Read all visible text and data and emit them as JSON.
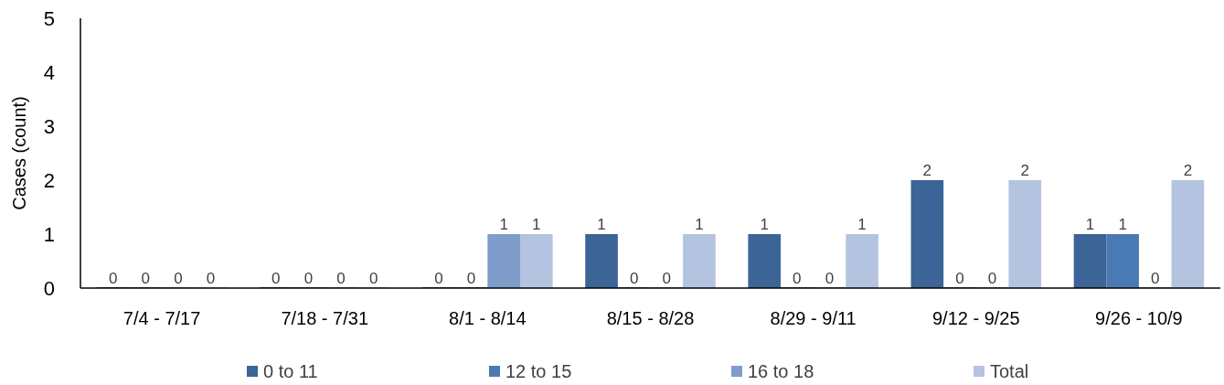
{
  "chart_data": {
    "type": "bar",
    "ylabel": "Cases (count)",
    "categories": [
      "7/4 - 7/17",
      "7/18 - 7/31",
      "8/1 - 8/14",
      "8/15 - 8/28",
      "8/29 - 9/11",
      "9/12 - 9/25",
      "9/26 - 10/9"
    ],
    "series": [
      {
        "name": "0 to 11",
        "color": "#3c6496",
        "values": [
          0,
          0,
          0,
          1,
          1,
          2,
          1
        ]
      },
      {
        "name": "12 to 15",
        "color": "#4a7ab4",
        "values": [
          0,
          0,
          0,
          0,
          0,
          0,
          1
        ]
      },
      {
        "name": "16 to 18",
        "color": "#7f9ccb",
        "values": [
          0,
          0,
          1,
          0,
          0,
          0,
          0
        ]
      },
      {
        "name": "Total",
        "color": "#b4c3df",
        "values": [
          0,
          0,
          1,
          1,
          1,
          2,
          2
        ]
      }
    ],
    "ylim": [
      0,
      5
    ],
    "yticks": [
      0,
      1,
      2,
      3,
      4,
      5
    ],
    "grid": false,
    "legend": "bottom",
    "data_labels": true
  }
}
